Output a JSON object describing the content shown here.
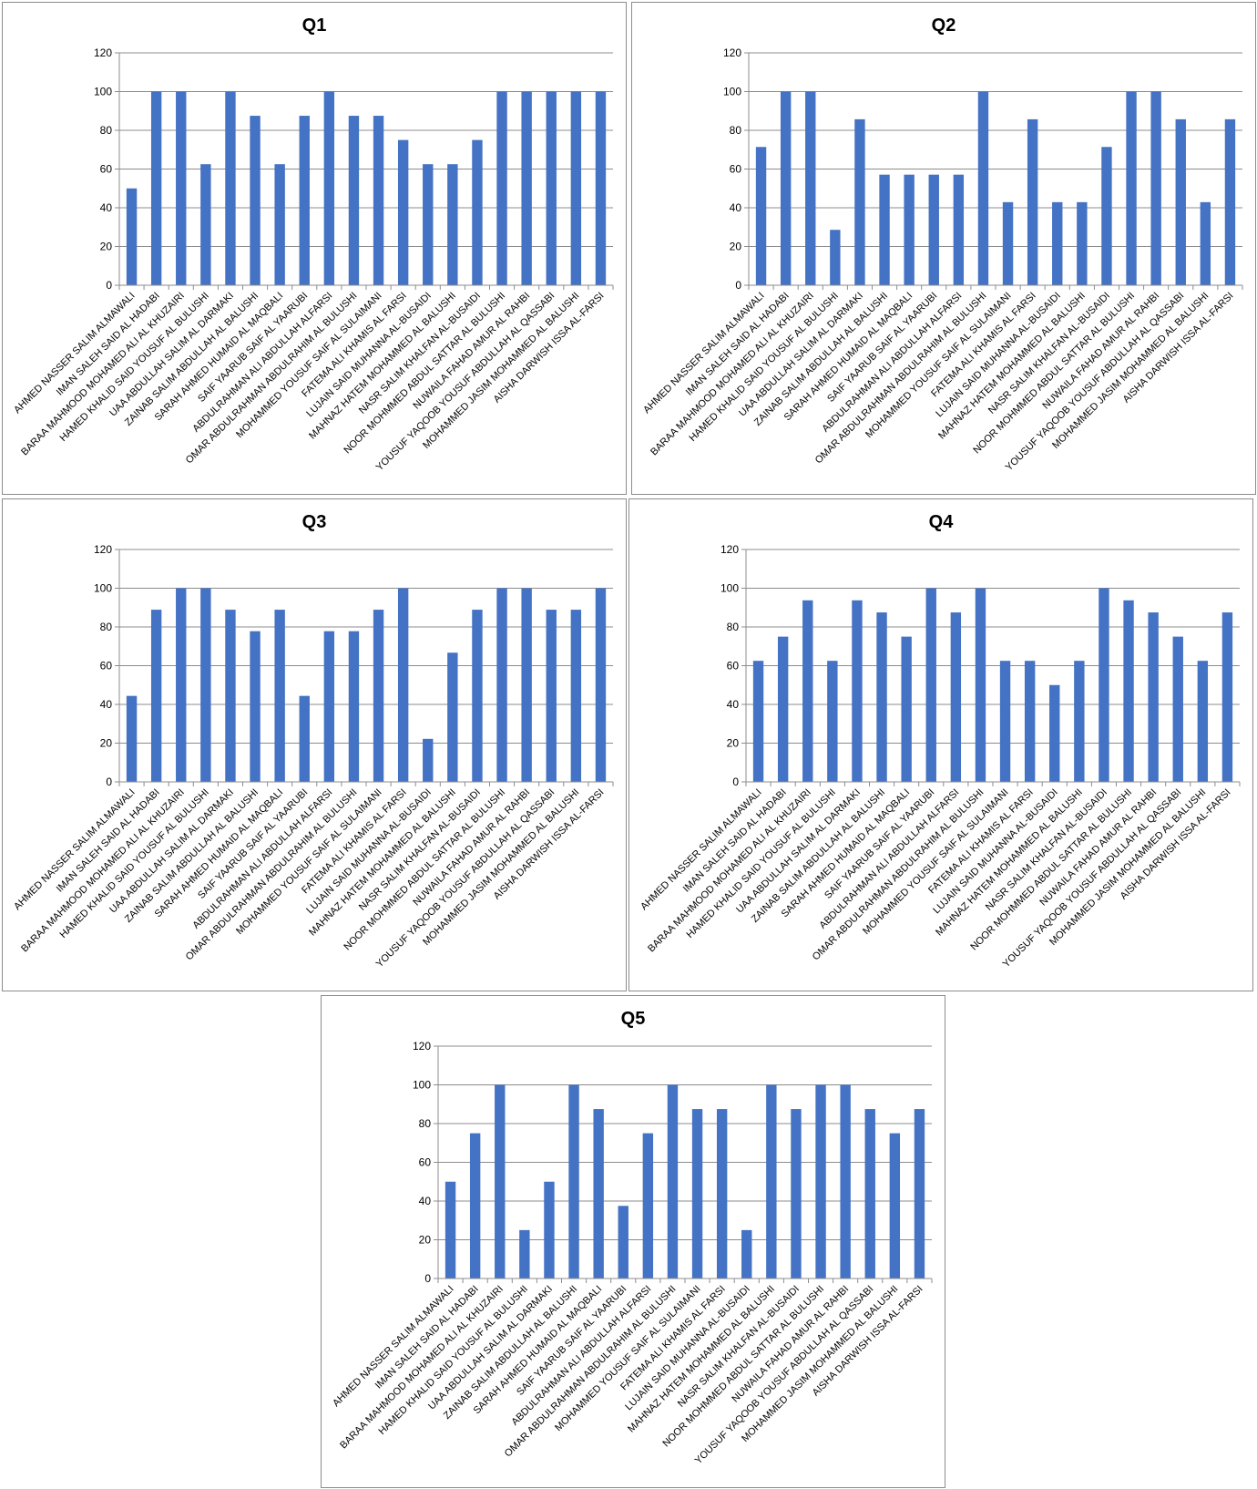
{
  "students": [
    "AHMED NASSER SALIM ALMAWALI",
    "IMAN SALEH SAID AL HADABI",
    "BARAA MAHMOOD MOHAMED ALI AL KHUZAIRI",
    "HAMED KHALID SAID YOUSUF AL BULUSHI",
    "UAA ABDULLAH SALIM AL DARMAKI",
    "ZAINAB SALIM ABDULLAH AL BALUSHI",
    "SARAH AHMED HUMAID AL MAQBALI",
    "SAIF YAARUB SAIF AL YAARUBI",
    "ABDULRAHMAN ALI ABDULLAH ALFARSI",
    "OMAR ABDULRAHMAN ABDULRAHIM AL BULUSHI",
    "MOHAMMED YOUSUF SAIF AL SULAIMANI",
    "FATEMA ALI KHAMIS AL FARSI",
    "LUJAIN SAID MUHANNA AL-BUSAIDI",
    "MAHNAZ HATEM MOHAMMED AL BALUSHI",
    "NASR SALIM KHALFAN AL-BUSAIDI",
    "NOOR MOHMMED ABDUL SATTAR AL BULUSHI",
    "NUWAILA FAHAD AMUR AL RAHBI",
    "YOUSUF YAQOOB YOUSUF ABDULLAH AL QASSABI",
    "MOHAMMED JASIM MOHAMMED AL BALUSHI",
    "AISHA DARWISH ISSA AL-FARSI"
  ],
  "chart_data": [
    {
      "type": "bar",
      "title": "Q1",
      "ylim": [
        0,
        120
      ],
      "yticks": [
        0,
        20,
        40,
        60,
        80,
        100,
        120
      ],
      "grid": true,
      "bar_color": "#4472C4",
      "values": [
        50,
        100,
        100,
        62.5,
        100,
        87.5,
        62.5,
        87.5,
        100,
        87.5,
        87.5,
        75,
        62.5,
        62.5,
        75,
        100,
        100,
        100,
        100,
        100
      ]
    },
    {
      "type": "bar",
      "title": "Q2",
      "ylim": [
        0,
        120
      ],
      "yticks": [
        0,
        20,
        40,
        60,
        80,
        100,
        120
      ],
      "grid": true,
      "bar_color": "#4472C4",
      "values": [
        71.4,
        100,
        100,
        28.6,
        85.7,
        57.1,
        57.1,
        57.1,
        57.1,
        100,
        42.9,
        85.7,
        42.9,
        42.9,
        71.4,
        100,
        100,
        85.7,
        42.9,
        85.7
      ]
    },
    {
      "type": "bar",
      "title": "Q3",
      "ylim": [
        0,
        120
      ],
      "yticks": [
        0,
        20,
        40,
        60,
        80,
        100,
        120
      ],
      "grid": true,
      "bar_color": "#4472C4",
      "values": [
        44.4,
        88.9,
        100,
        100,
        88.9,
        77.8,
        88.9,
        44.4,
        77.8,
        77.8,
        88.9,
        100,
        22.2,
        66.7,
        88.9,
        100,
        100,
        88.9,
        88.9,
        100
      ]
    },
    {
      "type": "bar",
      "title": "Q4",
      "ylim": [
        0,
        120
      ],
      "yticks": [
        0,
        20,
        40,
        60,
        80,
        100,
        120
      ],
      "grid": true,
      "bar_color": "#4472C4",
      "values": [
        62.5,
        75,
        93.75,
        62.5,
        93.75,
        87.5,
        75,
        100,
        87.5,
        100,
        62.5,
        62.5,
        50,
        62.5,
        100,
        93.75,
        87.5,
        75,
        62.5,
        87.5
      ]
    },
    {
      "type": "bar",
      "title": "Q5",
      "ylim": [
        0,
        120
      ],
      "yticks": [
        0,
        20,
        40,
        60,
        80,
        100,
        120
      ],
      "grid": true,
      "bar_color": "#4472C4",
      "values": [
        50,
        75,
        100,
        25,
        50,
        100,
        87.5,
        37.5,
        75,
        100,
        87.5,
        87.5,
        25,
        100,
        87.5,
        100,
        100,
        87.5,
        75,
        87.5
      ]
    }
  ]
}
